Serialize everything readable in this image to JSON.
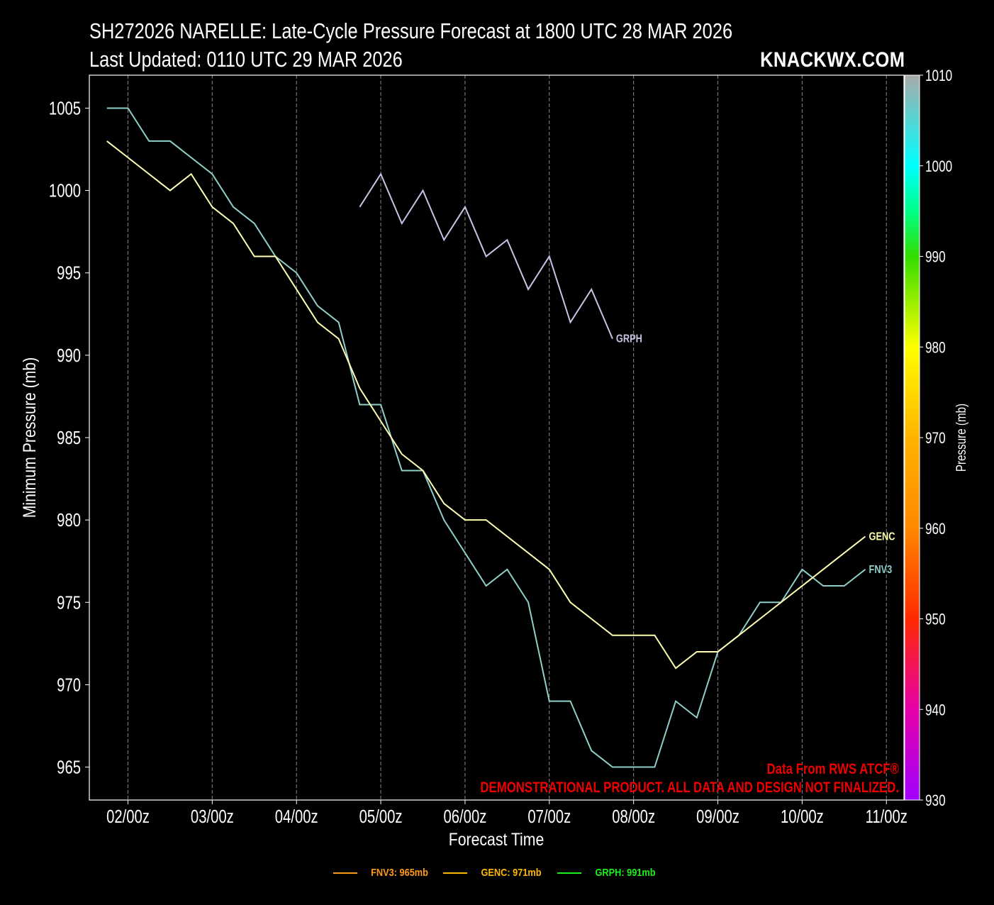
{
  "header": {
    "title": "SH272026 NARELLE: Late-Cycle Pressure Forecast at 1800 UTC 28 MAR 2026",
    "subtitle": "Last Updated: 0110 UTC 29 MAR 2026",
    "brand": "KNACKWX.COM"
  },
  "watermark": {
    "source": "Data From RWS ATCF®",
    "disclaimer": "DEMONSTRATIONAL PRODUCT. ALL DATA AND DESIGN NOT FINALIZED."
  },
  "legend": [
    {
      "label": "FNV3: 965mb",
      "color": "#ff9a1a"
    },
    {
      "label": "GENC: 971mb",
      "color": "#ffb800"
    },
    {
      "label": "GRPH: 991mb",
      "color": "#1ef01e"
    }
  ],
  "colorbar": {
    "label": "Pressure (mb)",
    "min": 930,
    "max": 1010,
    "ticks": [
      "930",
      "940",
      "950",
      "960",
      "970",
      "980",
      "990",
      "1000",
      "1010"
    ],
    "stops": [
      {
        "v": 930,
        "c": "#a000ff"
      },
      {
        "v": 940,
        "c": "#e600a8"
      },
      {
        "v": 950,
        "c": "#ff2a00"
      },
      {
        "v": 960,
        "c": "#ff8800"
      },
      {
        "v": 970,
        "c": "#ffb300"
      },
      {
        "v": 980,
        "c": "#ffff00"
      },
      {
        "v": 990,
        "c": "#33dd00"
      },
      {
        "v": 995,
        "c": "#00ff88"
      },
      {
        "v": 1000,
        "c": "#00ffff"
      },
      {
        "v": 1010,
        "c": "#aaaaaa"
      }
    ]
  },
  "chart_data": {
    "type": "line",
    "title": "SH272026 NARELLE: Late-Cycle Pressure Forecast at 1800 UTC 28 MAR 2026",
    "xlabel": "Forecast Time",
    "ylabel": "Minimum Pressure (mb)",
    "ylim": [
      963,
      1007
    ],
    "xlim_hours": [
      -11,
      221
    ],
    "x_unit": "hours since 02/00z",
    "yticks": [
      965,
      970,
      975,
      980,
      985,
      990,
      995,
      1000,
      1005
    ],
    "xticks": [
      {
        "hour": 0,
        "label": "02/00z"
      },
      {
        "hour": 24,
        "label": "03/00z"
      },
      {
        "hour": 48,
        "label": "04/00z"
      },
      {
        "hour": 72,
        "label": "05/00z"
      },
      {
        "hour": 96,
        "label": "06/00z"
      },
      {
        "hour": 120,
        "label": "07/00z"
      },
      {
        "hour": 144,
        "label": "08/00z"
      },
      {
        "hour": 168,
        "label": "09/00z"
      },
      {
        "hour": 192,
        "label": "10/00z"
      },
      {
        "hour": 216,
        "label": "11/00z"
      }
    ],
    "grid": "vertical-dashed",
    "legend_position": "bottom-center",
    "series": [
      {
        "name": "FNV3",
        "color": "#8ecfc9",
        "start_hour": -6,
        "step_hours": 6,
        "values": [
          1005,
          1005,
          1003,
          1003,
          1002,
          1001,
          999,
          998,
          996,
          995,
          993,
          992,
          987,
          987,
          983,
          983,
          980,
          978,
          976,
          977,
          975,
          969,
          969,
          966,
          965,
          965,
          965,
          969,
          968,
          972,
          973,
          975,
          975,
          977,
          976,
          976,
          977
        ]
      },
      {
        "name": "GENC",
        "color": "#ffffb3",
        "start_hour": -6,
        "step_hours": 6,
        "values": [
          1003,
          1002,
          1001,
          1000,
          1001,
          999,
          998,
          996,
          996,
          994,
          992,
          991,
          988,
          986,
          984,
          983,
          981,
          980,
          980,
          979,
          978,
          977,
          975,
          974,
          973,
          973,
          973,
          971,
          972,
          972,
          973,
          974,
          975,
          976,
          977,
          978,
          979
        ]
      },
      {
        "name": "GRPH",
        "color": "#c8c4e6",
        "start_hour": 66,
        "step_hours": 6,
        "values": [
          999,
          1001,
          998,
          1000,
          997,
          999,
          996,
          997,
          994,
          996,
          992,
          994,
          991
        ]
      }
    ]
  }
}
